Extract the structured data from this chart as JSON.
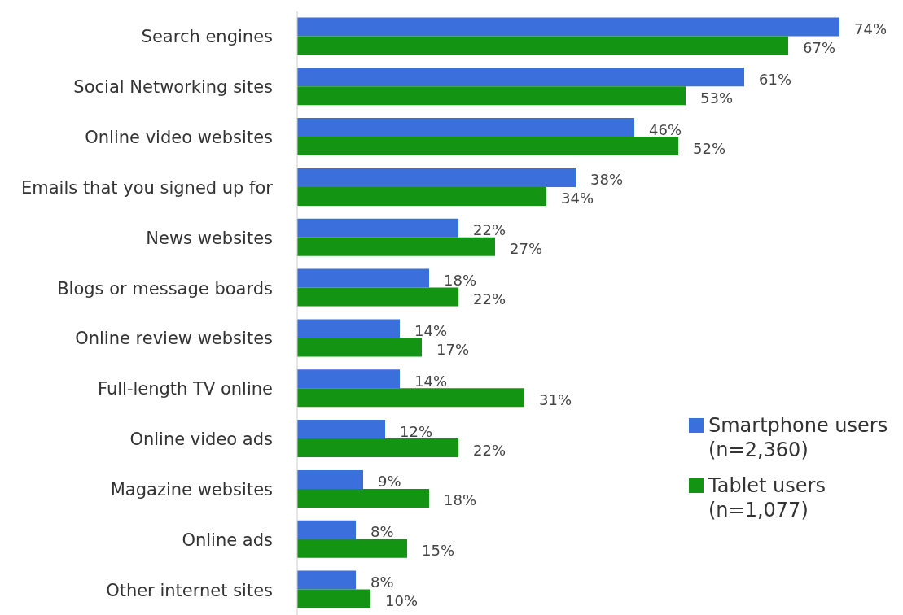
{
  "chart_data": {
    "type": "bar",
    "orientation": "horizontal",
    "legend": "bottom right",
    "categories": [
      "Search engines",
      "Social Networking sites",
      "Online video websites",
      "Emails that you signed up for",
      "News websites",
      "Blogs or message boards",
      "Online review websites",
      "Full-length TV online",
      "Online video ads",
      "Magazine websites",
      "Online ads",
      "Other internet sites"
    ],
    "series": [
      {
        "name": "Smartphone users\n(n=2,360)",
        "color": "#3b6fdc",
        "values": [
          74,
          61,
          46,
          38,
          22,
          18,
          14,
          14,
          12,
          9,
          8,
          8
        ],
        "value_labels": [
          "74%",
          "61%",
          "46%",
          "38%",
          "22%",
          "18%",
          "14%",
          "14%",
          "12%",
          "9%",
          "8%",
          "8%"
        ]
      },
      {
        "name": "Tablet users\n(n=1,077)",
        "color": "#139413",
        "values": [
          67,
          53,
          52,
          34,
          27,
          22,
          17,
          31,
          22,
          18,
          15,
          10
        ],
        "value_labels": [
          "67%",
          "53%",
          "52%",
          "34%",
          "27%",
          "22%",
          "17%",
          "31%",
          "22%",
          "18%",
          "15%",
          "10%"
        ]
      }
    ]
  }
}
